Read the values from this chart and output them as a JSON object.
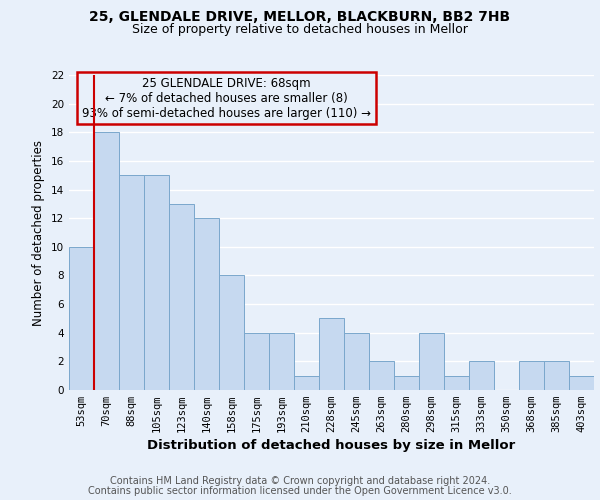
{
  "title1": "25, GLENDALE DRIVE, MELLOR, BLACKBURN, BB2 7HB",
  "title2": "Size of property relative to detached houses in Mellor",
  "xlabel": "Distribution of detached houses by size in Mellor",
  "ylabel": "Number of detached properties",
  "categories": [
    "53sqm",
    "70sqm",
    "88sqm",
    "105sqm",
    "123sqm",
    "140sqm",
    "158sqm",
    "175sqm",
    "193sqm",
    "210sqm",
    "228sqm",
    "245sqm",
    "263sqm",
    "280sqm",
    "298sqm",
    "315sqm",
    "333sqm",
    "350sqm",
    "368sqm",
    "385sqm",
    "403sqm"
  ],
  "values": [
    10,
    18,
    15,
    15,
    13,
    12,
    8,
    4,
    4,
    1,
    5,
    4,
    2,
    1,
    4,
    1,
    2,
    0,
    2,
    2,
    1
  ],
  "bar_color": "#c6d9f0",
  "bar_edge_color": "#7aa7cc",
  "vline_x_idx": 0.5,
  "vline_color": "#cc0000",
  "annotation_line1": "25 GLENDALE DRIVE: 68sqm",
  "annotation_line2": "← 7% of detached houses are smaller (8)",
  "annotation_line3": "93% of semi-detached houses are larger (110) →",
  "annotation_box_edgecolor": "#cc0000",
  "ylim": [
    0,
    22
  ],
  "yticks": [
    0,
    2,
    4,
    6,
    8,
    10,
    12,
    14,
    16,
    18,
    20,
    22
  ],
  "bg_color": "#e8f0fa",
  "grid_color": "#ffffff",
  "title1_fontsize": 10,
  "title2_fontsize": 9,
  "xlabel_fontsize": 9.5,
  "ylabel_fontsize": 8.5,
  "tick_fontsize": 7.5,
  "annotation_fontsize": 8.5,
  "footer_fontsize": 7,
  "footer1": "Contains HM Land Registry data © Crown copyright and database right 2024.",
  "footer2": "Contains public sector information licensed under the Open Government Licence v3.0."
}
